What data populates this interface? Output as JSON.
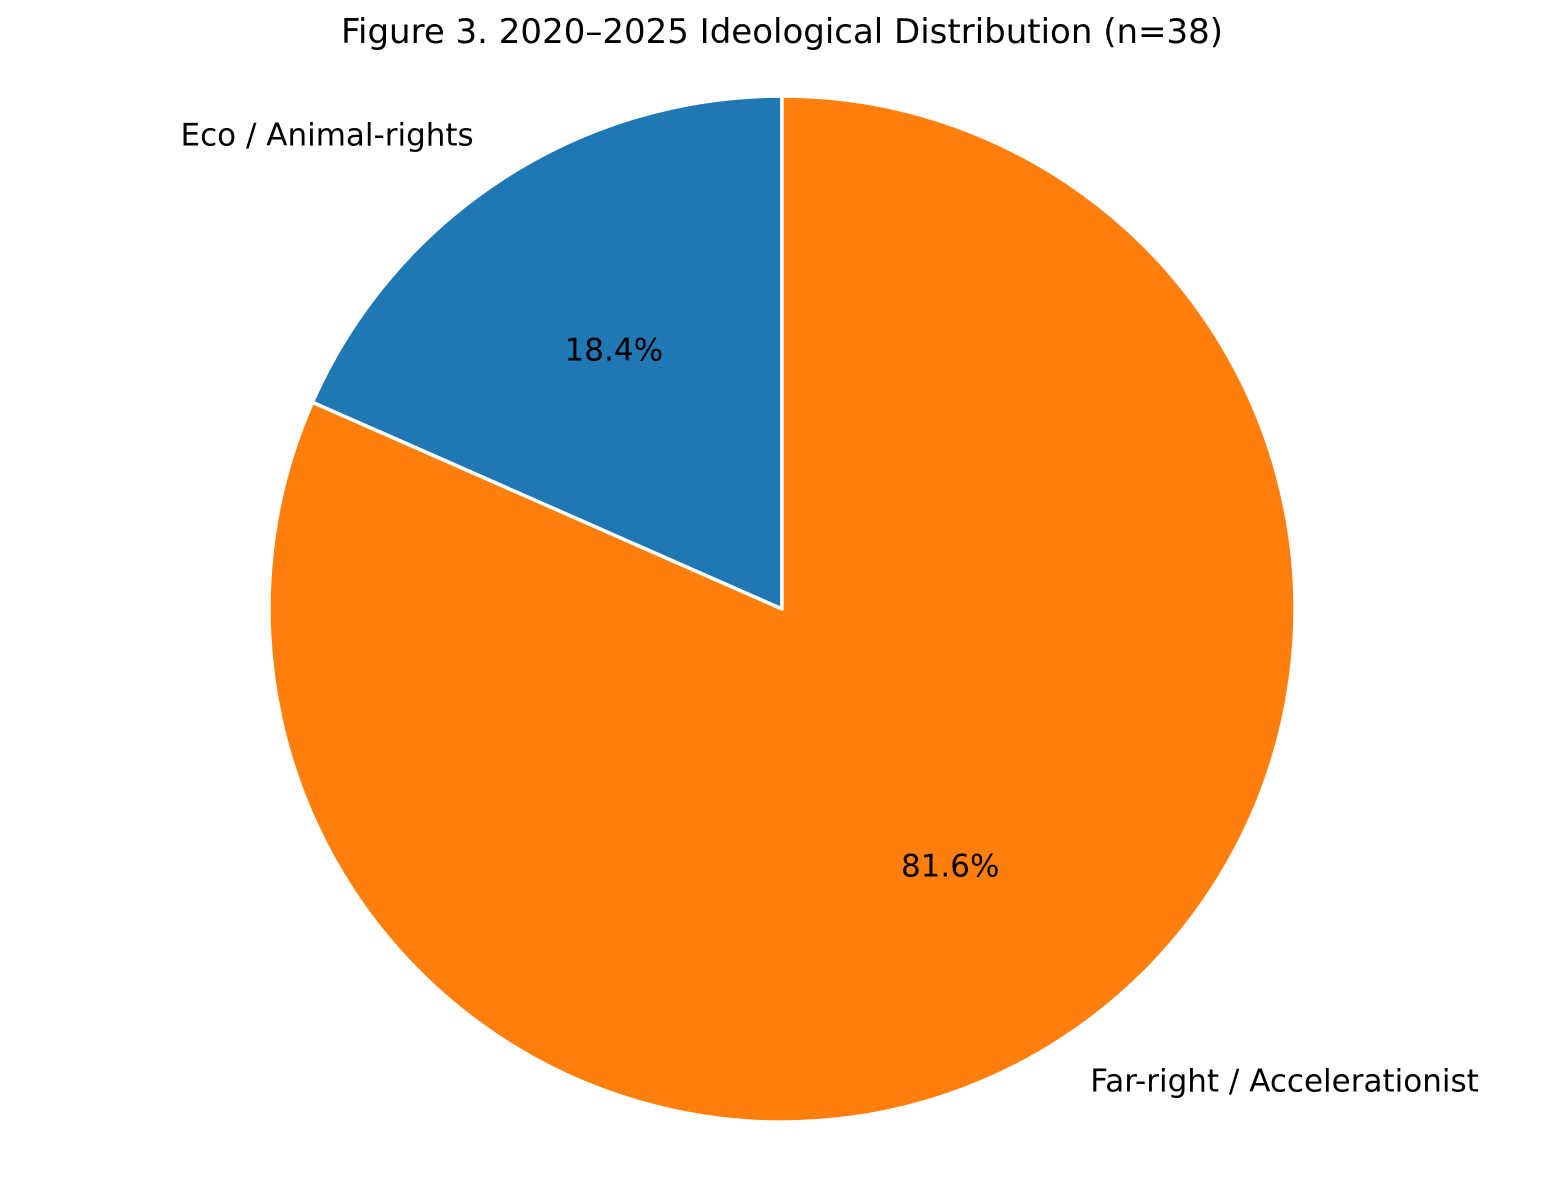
{
  "chart_data": {
    "type": "pie",
    "title": "Figure 3. 2020–2025 Ideological Distribution (n=38)",
    "slices": [
      {
        "label": "Eco / Animal-rights",
        "value_pct": 18.4,
        "pct_label": "18.4%",
        "color": "#1f77b4"
      },
      {
        "label": "Far-right / Accelerationist",
        "value_pct": 81.6,
        "pct_label": "81.6%",
        "color": "#ff7f0e"
      }
    ],
    "start_angle_deg": 90,
    "counterclockwise": true,
    "label_distance": 1.1,
    "pct_distance": 0.6,
    "edge_color": "#ffffff",
    "text_color": "#000000",
    "background": "#ffffff",
    "legend": "none"
  }
}
